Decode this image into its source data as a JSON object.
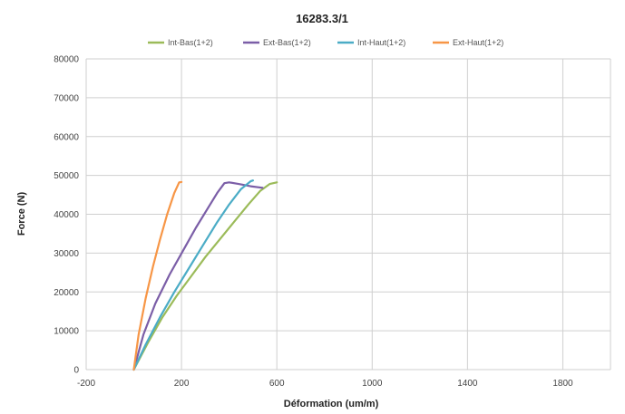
{
  "chart_data": {
    "type": "line",
    "title": "16283.3/1",
    "xlabel": "Déformation (um/m)",
    "ylabel": "Force (N)",
    "xlim": [
      -200,
      2000
    ],
    "ylim": [
      0,
      80000
    ],
    "xticks": [
      -200,
      200,
      600,
      1000,
      1400,
      1800
    ],
    "yticks": [
      0,
      10000,
      20000,
      30000,
      40000,
      50000,
      60000,
      70000,
      80000
    ],
    "x_grid_values": [
      -200,
      200,
      600,
      1000,
      1400,
      1800,
      2000
    ],
    "grid": true,
    "legend": "top",
    "series": [
      {
        "name": "Int-Bas(1+2)",
        "color": "#9bbb59",
        "x": [
          0,
          60,
          120,
          180,
          240,
          300,
          360,
          420,
          480,
          530,
          570,
          600
        ],
        "y": [
          0,
          7000,
          13500,
          19000,
          24000,
          29000,
          33500,
          38000,
          42500,
          46000,
          47800,
          48200
        ]
      },
      {
        "name": "Ext-Bas(1+2)",
        "color": "#7b5ea7",
        "x": [
          0,
          40,
          90,
          150,
          210,
          260,
          310,
          350,
          380,
          400,
          440,
          490,
          540
        ],
        "y": [
          0,
          9000,
          17000,
          24500,
          31000,
          36500,
          41500,
          45500,
          48000,
          48200,
          47800,
          47200,
          46800
        ]
      },
      {
        "name": "Int-Haut(1+2)",
        "color": "#4bacc6",
        "x": [
          0,
          50,
          110,
          170,
          230,
          290,
          350,
          400,
          450,
          490,
          500
        ],
        "y": [
          0,
          6500,
          13500,
          20000,
          26000,
          32000,
          38000,
          42500,
          46500,
          48500,
          48700
        ]
      },
      {
        "name": "Ext-Haut(1+2)",
        "color": "#f79646",
        "x": [
          0,
          20,
          50,
          80,
          110,
          140,
          170,
          190,
          200
        ],
        "y": [
          0,
          9000,
          18500,
          26500,
          33500,
          40000,
          45500,
          48200,
          48300
        ]
      }
    ]
  }
}
